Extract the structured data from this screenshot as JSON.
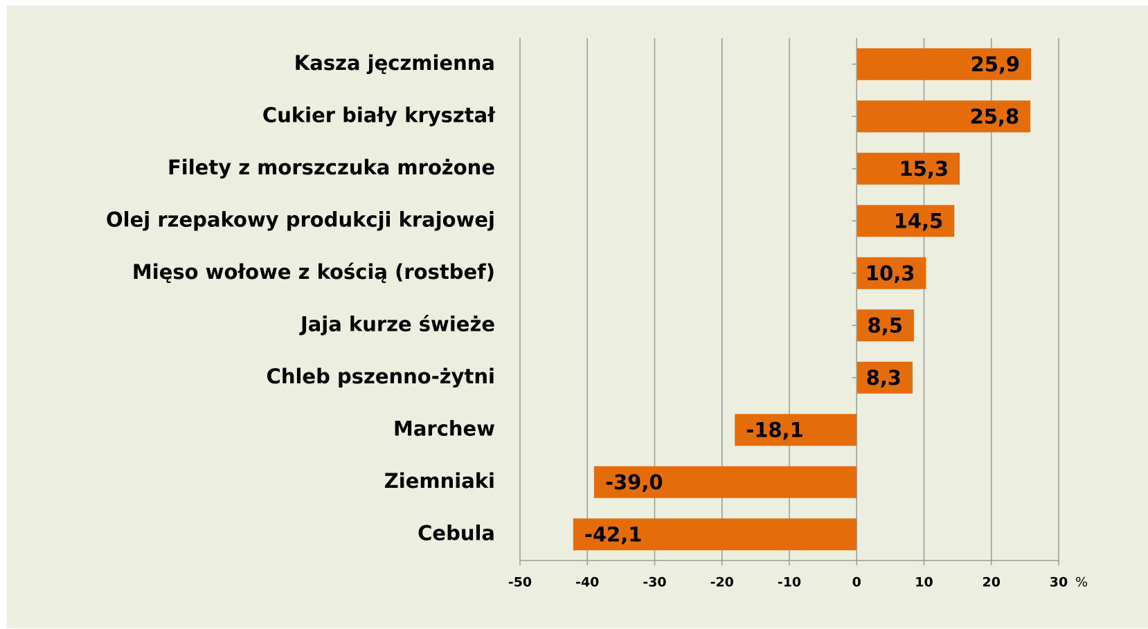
{
  "chart_data": {
    "type": "bar",
    "orientation": "horizontal",
    "categories": [
      "Kasza jęczmienna",
      "Cukier biały kryształ",
      "Filety z morszczuka mrożone",
      "Olej rzepakowy produkcji krajowej",
      "Mięso wołowe z kością (rostbef)",
      "Jaja kurze świeże",
      "Chleb pszenno-żytni",
      "Marchew",
      "Ziemniaki",
      "Cebula"
    ],
    "values": [
      25.9,
      25.8,
      15.3,
      14.5,
      10.3,
      8.5,
      8.3,
      -18.1,
      -39.0,
      -42.1
    ],
    "value_labels": [
      "25,9",
      "25,8",
      "15,3",
      "14,5",
      "10,3",
      "8,5",
      "8,3",
      "-18,1",
      "-39,0",
      "-42,1"
    ],
    "color": "#e46c0a",
    "xlim": [
      -50,
      30
    ],
    "xticks": [
      -50,
      -40,
      -30,
      -20,
      -10,
      0,
      10,
      20,
      30
    ],
    "x_label": "%",
    "grid": true
  }
}
